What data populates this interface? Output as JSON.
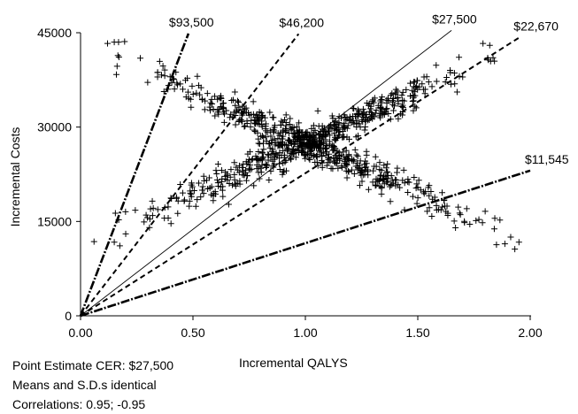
{
  "chart_data": {
    "type": "scatter",
    "title": "",
    "xlabel": "Incremental QALYS",
    "ylabel": "Incremental Costs",
    "xlim": [
      0,
      2
    ],
    "ylim": [
      0,
      45000
    ],
    "x_ticks": [
      "0.00",
      "0.50",
      "1.00",
      "1.50",
      "2.00"
    ],
    "y_ticks": [
      "0",
      "15000",
      "30000",
      "45000"
    ],
    "grid": false,
    "legend": "none",
    "rays": [
      {
        "label": "$93,500",
        "slope": 93500,
        "x_end": 0.48,
        "style": "dashdot-heavy"
      },
      {
        "label": "$46,200",
        "slope": 46200,
        "x_end": 0.97,
        "style": "dashed"
      },
      {
        "label": "$27,500",
        "slope": 27500,
        "x_end": 1.65,
        "style": "solid-thin"
      },
      {
        "label": "$22,670",
        "slope": 22670,
        "x_end": 1.95,
        "style": "dashed"
      },
      {
        "label": "$11,545",
        "slope": 11545,
        "x_end": 2.0,
        "style": "dashdot-heavy"
      }
    ],
    "clusters": {
      "center": [
        1.0,
        27500
      ],
      "arm_positive": {
        "correlation": 0.95,
        "x_range": [
          0.15,
          1.85
        ],
        "slope_cost_per_qaly": 16000
      },
      "arm_negative": {
        "correlation": -0.95,
        "x_range": [
          0.15,
          1.95
        ],
        "slope_cost_per_qaly": -16000
      }
    },
    "outliers": [
      {
        "x": 0.12,
        "y": 43300
      },
      {
        "x": 0.15,
        "y": 43500
      },
      {
        "x": 1.79,
        "y": 43300
      },
      {
        "x": 1.82,
        "y": 43000
      },
      {
        "x": 0.06,
        "y": 11800
      },
      {
        "x": 0.15,
        "y": 11700
      },
      {
        "x": 1.85,
        "y": 11300
      },
      {
        "x": 1.95,
        "y": 11700
      }
    ],
    "annotations": [
      "Point Estimate CER:  $27,500",
      "Means and S.D.s identical",
      "Correlations:  0.95; -0.95"
    ]
  }
}
